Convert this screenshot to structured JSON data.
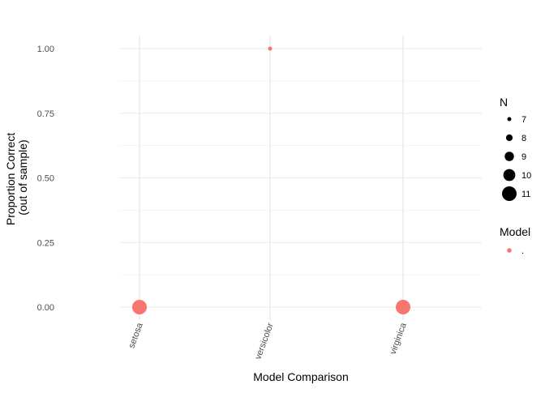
{
  "chart_data": {
    "type": "scatter",
    "title": "",
    "xlabel": "Model Comparison",
    "ylabel_lines": [
      "Proportion Correct",
      "(out of sample)"
    ],
    "categories": [
      "setosa",
      "versicolor",
      "virginica"
    ],
    "ylim": [
      0,
      1
    ],
    "yticks": [
      0.0,
      0.25,
      0.5,
      0.75,
      1.0
    ],
    "ytick_labels": [
      "0.00",
      "0.25",
      "0.50",
      "0.75",
      "1.00"
    ],
    "grid": true,
    "series": [
      {
        "values": [
          0.0,
          1.0,
          0.0
        ],
        "sizes": [
          11,
          7,
          11
        ],
        "color": "#F8766D"
      }
    ],
    "legend": {
      "placement": "right",
      "size": {
        "title": "N",
        "values": [
          7,
          8,
          9,
          10,
          11
        ],
        "labels": [
          "7",
          "8",
          "9",
          "10",
          "11"
        ]
      },
      "color": {
        "title": "Model",
        "labels": [
          "."
        ],
        "colors": [
          "#F8766D"
        ]
      }
    }
  }
}
